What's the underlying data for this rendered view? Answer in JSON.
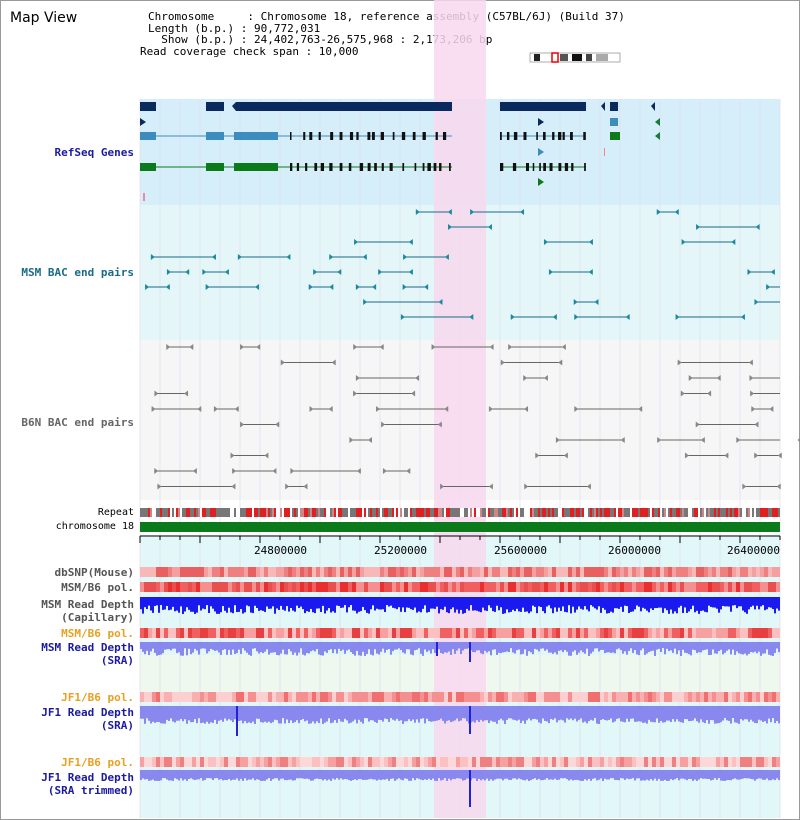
{
  "view": {
    "title": "Map View",
    "info": {
      "line1": "Chromosome     : Chromosome 18, reference assembly (C57BL/6J) (Build 37)",
      "line2": "Length (b.p.) : 90,772,031",
      "line3": "Show (b.p.) : 24,402,763-26,575,968 : 2,173,206 bp",
      "line4": "Read coverage check span : 10,000"
    }
  },
  "tracks": {
    "refseq": "RefSeq Genes",
    "msm_bac": "MSM BAC end pairs",
    "b6n_bac": "B6N BAC end pairs",
    "repeat": "Repeat",
    "chromosome": "chromosome 18",
    "dbsnp": "dbSNP(Mouse)",
    "msm_b6_pol_1": "MSM/B6 pol.",
    "msm_read_depth_cap_1": "MSM Read Depth",
    "msm_read_depth_cap_2": "(Capillary)",
    "msm_b6_pol_2": "MSM/B6 pol.",
    "msm_read_depth_sra_1": "MSM Read Depth",
    "msm_read_depth_sra_2": "(SRA)",
    "jf1_b6_pol_1": "JF1/B6 pol.",
    "jf1_read_depth_sra_1": "JF1 Read Depth",
    "jf1_read_depth_sra_2": "(SRA)",
    "jf1_b6_pol_2": "JF1/B6 pol.",
    "jf1_read_depth_trim_1": "JF1 Read Depth",
    "jf1_read_depth_trim_2": "(SRA trimmed)"
  },
  "axis": {
    "ticks": [
      "24800000",
      "25200000",
      "25600000",
      "26000000",
      "26400000"
    ]
  },
  "colors": {
    "refseq_bg": "#d6eef9",
    "msm_bg": "#e4f6f7",
    "b6n_bg": "#f6f6f6",
    "highlight": "#f8d8ef",
    "navy": "#0a2a5e",
    "steel": "#3c8cbe",
    "green": "#0a7a1a",
    "teal": "#1a6a8a",
    "blue_depth": "#1a1aee",
    "light_depth": "#8888ee"
  }
}
